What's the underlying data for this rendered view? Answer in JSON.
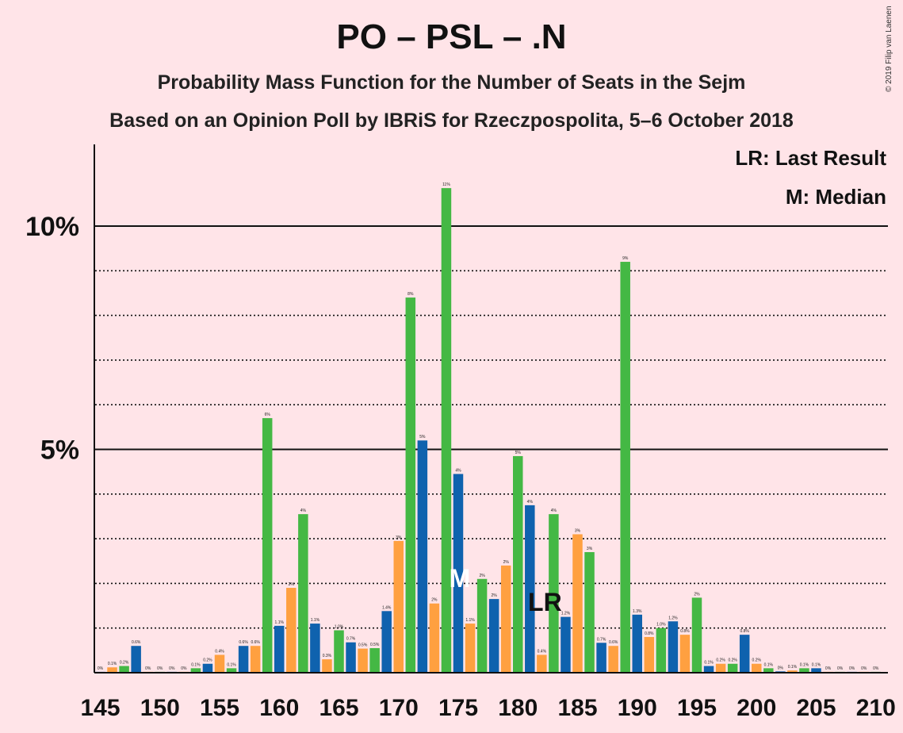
{
  "title": "PO – PSL – .N",
  "subtitle": "Probability Mass Function for the Number of Seats in the Sejm",
  "subtitle2": "Based on an Opinion Poll by IBRiS for Rzeczpospolita, 5–6 October 2018",
  "copyright": "© 2019 Filip van Laenen",
  "legend": {
    "last_result": "LR: Last Result",
    "median": "M: Median"
  },
  "chart_data": {
    "type": "bar",
    "xlabel": "",
    "ylabel": "",
    "x_range": [
      145,
      210
    ],
    "ylim": [
      0,
      11.8
    ],
    "ytick_values": [
      5,
      10
    ],
    "ytick_labels": [
      "5%",
      "10%"
    ],
    "xtick_values": [
      145,
      150,
      155,
      160,
      165,
      170,
      175,
      180,
      185,
      190,
      195,
      200,
      205,
      210
    ],
    "xtick_labels": [
      "145",
      "150",
      "155",
      "160",
      "165",
      "170",
      "175",
      "180",
      "185",
      "190",
      "195",
      "200",
      "205",
      "210"
    ],
    "minor_gridlines": [
      1,
      2,
      3,
      4,
      6,
      7,
      8,
      9
    ],
    "major_gridlines": [
      5,
      10
    ],
    "colors": {
      "blue": "#0F62AE",
      "green": "#44B844",
      "orange": "#FFA040",
      "background": "#FFE4E8",
      "median_marker": "#FFFFFF",
      "lr_marker": "#111111"
    },
    "color_cycle": [
      "blue",
      "orange",
      "green"
    ],
    "seats": [
      145,
      146,
      147,
      148,
      149,
      150,
      151,
      152,
      153,
      154,
      155,
      156,
      157,
      158,
      159,
      160,
      161,
      162,
      163,
      164,
      165,
      166,
      167,
      168,
      169,
      170,
      171,
      172,
      173,
      174,
      175,
      176,
      177,
      178,
      179,
      180,
      181,
      182,
      183,
      184,
      185,
      186,
      187,
      188,
      189,
      190,
      191,
      192,
      193,
      194,
      195,
      196,
      197,
      198,
      199,
      200,
      201,
      202,
      203,
      204,
      205,
      206,
      207,
      208,
      209,
      210
    ],
    "values": [
      0.02,
      0.12,
      0.15,
      0.6,
      0.02,
      0.02,
      0.02,
      0.02,
      0.1,
      0.2,
      0.4,
      0.1,
      0.6,
      0.6,
      5.7,
      1.05,
      1.9,
      3.55,
      1.1,
      0.3,
      0.95,
      0.68,
      0.54,
      0.55,
      1.38,
      2.95,
      8.4,
      5.2,
      1.55,
      10.85,
      4.45,
      1.1,
      2.1,
      1.65,
      2.4,
      4.85,
      3.75,
      0.4,
      3.55,
      1.25,
      3.1,
      2.7,
      0.67,
      0.6,
      9.2,
      1.3,
      0.8,
      1.0,
      1.15,
      0.85,
      1.68,
      0.15,
      0.2,
      0.2,
      0.85,
      0.2,
      0.1,
      0.03,
      0.05,
      0.1,
      0.1,
      0.02,
      0.02,
      0.02,
      0.02,
      0.02
    ],
    "data_labels": [
      "0%",
      "0.1%",
      "0.2%",
      "0.6%",
      "0%",
      "0%",
      "0%",
      "0%",
      "0.1%",
      "0.2%",
      "0.4%",
      "0.1%",
      "0.6%",
      "0.6%",
      "6%",
      "1.1%",
      "2%",
      "4%",
      "1.1%",
      "0.3%",
      "1.0%",
      "0.7%",
      "0.5%",
      "0.5%",
      "1.4%",
      "3%",
      "8%",
      "5%",
      "2%",
      "11%",
      "4%",
      "1.1%",
      "2%",
      "2%",
      "2%",
      "5%",
      "4%",
      "0.4%",
      "4%",
      "1.2%",
      "3%",
      "3%",
      "0.7%",
      "0.6%",
      "9%",
      "1.3%",
      "0.8%",
      "1.0%",
      "1.2%",
      "0.8%",
      "2%",
      "0.1%",
      "0.2%",
      "0.2%",
      "0.8%",
      "0.2%",
      "0.1%",
      "0%",
      "0.1%",
      "0.1%",
      "0.1%",
      "0%",
      "0%",
      "0%",
      "0%",
      "0%"
    ],
    "median_seat": 175,
    "median_label": "M",
    "last_result_seat": 182,
    "last_result_label": "LR"
  }
}
